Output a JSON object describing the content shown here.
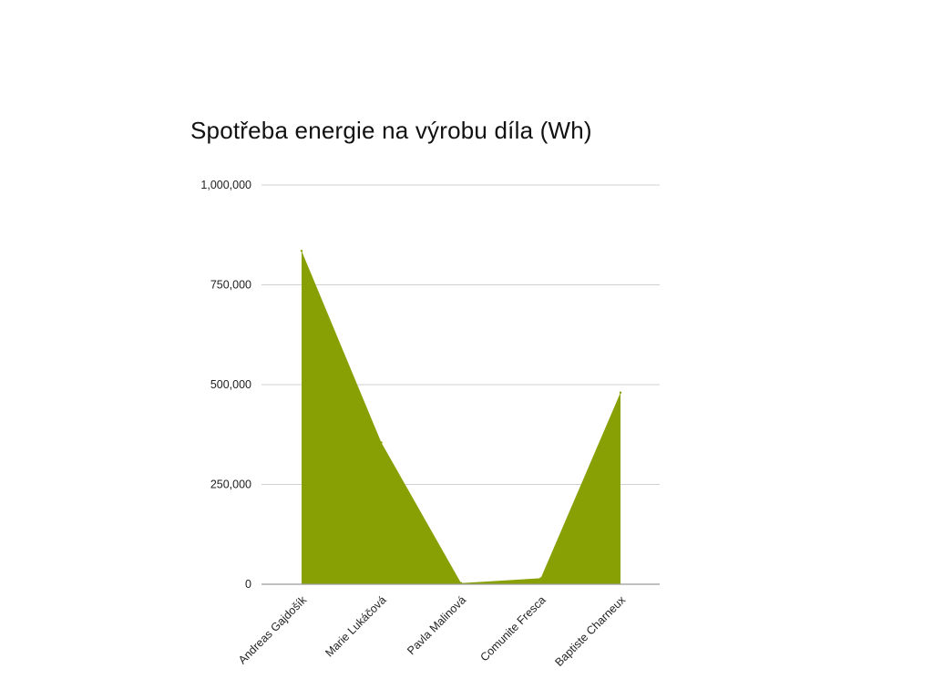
{
  "chart_data": {
    "type": "area",
    "title": "Spotřeba energie na výrobu díla (Wh)",
    "xlabel": "",
    "ylabel": "",
    "categories": [
      "Andreas Gajdošík",
      "Marie Lukáčová",
      "Pavla Malinová",
      "Comunite Fresca",
      "Baptiste Charneux"
    ],
    "values": [
      835000,
      355000,
      3000,
      15000,
      480000
    ],
    "ylim": [
      0,
      1000000
    ],
    "yticks": [
      0,
      250000,
      500000,
      750000,
      1000000
    ],
    "ytick_labels": [
      "0",
      "250,000",
      "500,000",
      "750,000",
      "1,000,000"
    ],
    "grid": true,
    "legend": "none",
    "colors": {
      "area": "#88a004",
      "grid": "#d0d0d0",
      "axis": "#9a9a9a"
    }
  }
}
